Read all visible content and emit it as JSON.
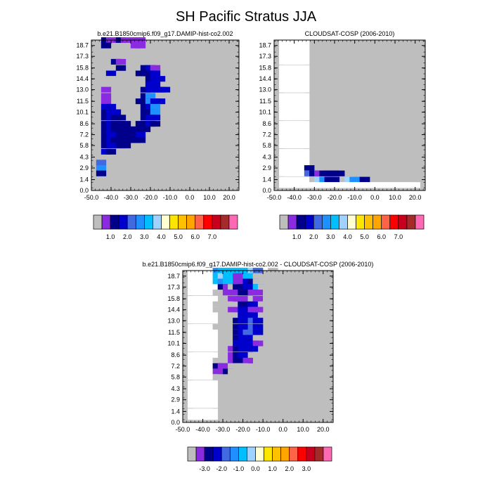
{
  "figure": {
    "title": "SH Pacific Stratus JJA"
  },
  "chart_data": [
    {
      "type": "heatmap",
      "id": "model",
      "title": "b.e21.B1850cmip6.f09_g17.DAMIP-hist-co2.002",
      "x_ticks": [
        "-50.0",
        "-40.0",
        "-30.0",
        "-20.0",
        "-10.0",
        "0.0",
        "10.0",
        "20.0"
      ],
      "y_ticks": [
        "0.0",
        "1.4",
        "2.9",
        "4.3",
        "5.8",
        "7.2",
        "8.6",
        "10.1",
        "11.5",
        "13.0",
        "14.4",
        "15.8",
        "17.3",
        "18.7"
      ],
      "x_columns": [
        "-45",
        "-42.5",
        "-40",
        "-37.5",
        "-35",
        "-32.5",
        "-30",
        "-27.5",
        "-25",
        "-22.5",
        "-20",
        "-17.5",
        "-15",
        "-12.5",
        "-10",
        "-7.5",
        "-5",
        "-2.5",
        "0",
        "2.5",
        "5",
        "7.5",
        "10",
        "12.5",
        "15",
        "17.5",
        "20",
        "22.5",
        "25"
      ],
      "y_rows": [
        "19.4",
        "18.7",
        "18.0",
        "17.3",
        "16.6",
        "15.8",
        "15.1",
        "14.4",
        "13.7",
        "13.0",
        "12.2",
        "11.5",
        "10.8",
        "10.1",
        "9.4",
        "8.6",
        "7.9",
        "7.2",
        "6.5",
        "5.8",
        "5.0",
        "4.3",
        "3.6",
        "2.9",
        "2.2",
        "1.4",
        "0.7"
      ],
      "missing_color": "#bebebe",
      "colorbar": {
        "colors": [
          "#bebebe",
          "#8a2be2",
          "#00008b",
          "#0000cd",
          "#4169e1",
          "#1e90ff",
          "#00bfff",
          "#a0d2ff",
          "#ffffd2",
          "#ffe600",
          "#ffc000",
          "#ffa500",
          "#ff6347",
          "#ff0000",
          "#c8001e",
          "#a52a2a",
          "#ff69b4"
        ],
        "labels": [
          "1.0",
          "2.0",
          "3.0",
          "4.0",
          "5.0",
          "6.0",
          "7.0"
        ]
      },
      "grid": [
        "1cb1cb2bb0000000000000000000",
        "1c21111bb000000000000000000",
        "21111111000000000000000000000",
        "1111111111000000000000000000",
        "111cb111111110000000000000000",
        "1a11c1111cdb00000000000000000",
        "2ad11111cccd0000000000000000",
        "21a1000000cdd00000000000000000",
        "5a10000000dd00000000000000000",
        "5b1000000cdddd0000000000000000",
        "5b1000000cf1110000000000000000",
        "1b100000ccfdd000000000000000000",
        "1dd000000cdf000000000000000000",
        "1cdd00000ccf100000000000000000",
        "1cdcc0000cdd0000000000000000",
        "1cdccc00ccdc000000000000000000",
        "0cdcccc0cc0000000000000000000",
        "0cddccccd00000000000000000000",
        "0cdcccccc00000000000000000000",
        "0cddcc000000000000000000000",
        "0dc000000000000000000000000",
        "00000000000000000000000000",
        "e000000000000000000000000000",
        "f000000000000000000000000000",
        "c000000000000000000000000000",
        "0000000000000000000000000000",
        "0000000000000000000000000000"
      ]
    },
    {
      "type": "heatmap",
      "id": "obs",
      "title": "CLOUDSAT-COSP (2006-2010)",
      "x_ticks": [
        "-50.0",
        "-40.0",
        "-30.0",
        "-20.0",
        "-10.0",
        "0.0",
        "10.0",
        "20.0"
      ],
      "y_ticks": [
        "0.0",
        "1.4",
        "2.9",
        "4.3",
        "5.8",
        "7.2",
        "8.6",
        "10.1",
        "11.5",
        "13.0",
        "14.4",
        "15.8",
        "17.3",
        "18.7"
      ],
      "x_columns": [
        "-45",
        "-42.5",
        "-40",
        "-37.5",
        "-35",
        "-32.5",
        "-30",
        "-27.5",
        "-25",
        "-22.5",
        "-20",
        "-17.5",
        "-15",
        "-12.5",
        "-10",
        "-7.5",
        "-5",
        "-2.5",
        "0",
        "2.5",
        "5",
        "7.5",
        "10",
        "12.5",
        "15",
        "17.5",
        "20",
        "22.5",
        "25"
      ],
      "y_rows": [
        "19.4",
        "18.7",
        "18.0",
        "17.3",
        "16.6",
        "15.8",
        "15.1",
        "14.4",
        "13.7",
        "13.0",
        "12.2",
        "11.5",
        "10.8",
        "10.1",
        "9.4",
        "8.6",
        "7.9",
        "7.2",
        "6.5",
        "5.8",
        "5.0",
        "4.3",
        "3.6",
        "2.9",
        "2.2",
        "1.4",
        "0.7"
      ],
      "missing_color": "#bebebe",
      "colorbar": {
        "colors": [
          "#bebebe",
          "#8a2be2",
          "#00008b",
          "#0000cd",
          "#4169e1",
          "#1e90ff",
          "#00bfff",
          "#a0d2ff",
          "#ffffd2",
          "#ffe600",
          "#ffc000",
          "#ffa500",
          "#ff6347",
          "#ff0000",
          "#c8001e",
          "#a52a2a",
          "#ff69b4"
        ],
        "labels": [
          "1.0",
          "2.0",
          "3.0",
          "4.0",
          "5.0",
          "6.0",
          "7.0"
        ]
      },
      "grid": [
        ".....00000000000000000000000",
        ".....00000000000000000000000",
        ".....00000000000000000000000",
        ".....00000000000000000000000",
        ".....00000000000000000000000",
        ".....00000000000000000000000",
        ".....00000000000000000000000",
        ".....00000000000000000000000",
        ".....00000000000000000000000",
        ".....00000000000000000000000",
        ".....00000000000000000000000",
        ".....111000000000000000000000",
        ".....1111100000000000000000000",
        ".....11111110000000000000000000",
        ".....00000000000000000000000",
        ".....00000000000000000000000",
        ".....00000000000000000000000",
        ".....00000000000000000000000",
        ".....00000000000000000000000",
        ".....00000000000000000000000",
        ".....00000000000000000000000",
        ".....00000000000000000000000",
        ".....00000000000000000000000",
        ".....c1000000000000000000000",
        ".....ecbcccc11100000000000000",
        ".....9ahfcc0ahf0c00000000000",
        "..........................."
      ]
    },
    {
      "type": "heatmap",
      "id": "diff",
      "title": "b.e21.B1850cmip6.f09_g17.DAMIP-hist-co2.002 - CLOUDSAT-COSP (2006-2010)",
      "x_ticks": [
        "-50.0",
        "-40.0",
        "-30.0",
        "-20.0",
        "-10.0",
        "0.0",
        "10.0",
        "20.0"
      ],
      "y_ticks": [
        "0.0",
        "1.4",
        "2.9",
        "4.3",
        "5.8",
        "7.2",
        "8.6",
        "10.1",
        "11.5",
        "13.0",
        "14.4",
        "15.8",
        "17.3",
        "18.7"
      ],
      "x_columns": [
        "-45",
        "-42.5",
        "-40",
        "-37.5",
        "-35",
        "-32.5",
        "-30",
        "-27.5",
        "-25",
        "-22.5",
        "-20",
        "-17.5",
        "-15",
        "-12.5",
        "-10",
        "-7.5",
        "-5",
        "-2.5",
        "0",
        "2.5",
        "5",
        "7.5",
        "10",
        "12.5",
        "15",
        "17.5",
        "20",
        "22.5",
        "25"
      ],
      "y_rows": [
        "19.4",
        "18.7",
        "18.0",
        "17.3",
        "16.6",
        "15.8",
        "15.1",
        "14.4",
        "13.7",
        "13.0",
        "12.2",
        "11.5",
        "10.8",
        "10.1",
        "9.4",
        "8.6",
        "7.9",
        "7.2",
        "6.5",
        "5.8",
        "5.0",
        "4.3",
        "3.6",
        "2.9",
        "2.2",
        "1.4",
        "0.7"
      ],
      "missing_color": "#bebebe",
      "colorbar": {
        "colors": [
          "#bebebe",
          "#8a2be2",
          "#00008b",
          "#0000cd",
          "#4169e1",
          "#1e90ff",
          "#00bfff",
          "#a0d2ff",
          "#ffffd2",
          "#ffe600",
          "#ffc000",
          "#ffa500",
          "#ff6347",
          "#ff0000",
          "#c8001e",
          "#a52a2a",
          "#ff69b4"
        ],
        "labels": [
          "-3.0",
          "-2.0",
          "-1.0",
          "0.0",
          "1.0",
          "2.0",
          "3.0"
        ]
      },
      "grid": [
        ".....fgggggghe99a88888888888",
        ".....ghggbbgga9a88888888888",
        ".....gfggbbdca9a88888888888",
        ".....8cbaccddga988888888888",
        ".....a8bbbccbb9a88888888888",
        ".....899b8b9ab9a88888888888",
        ".....aaa98c9d9a888888888888",
        ".....a9ab9ddbb9888888888888",
        ".....87aa9ddd9a888888888888",
        ".....877acdded9888888888888",
        ".....a97acdded9888888888888",
        ".....787acdeed9888888888888",
        ".....997acddda8888888888888",
        ".....99aaddddb8888888888888",
        ".....898bcddd98888888888888",
        ".....899bcdda77788888888888",
        ".....aa9bccb977777888888888",
        ".....cbbaaa97777777888888888",
        ".....bbca997777777777888888",
        ".....a9a988777777777777888888",
        ".....98877777777777777788888",
        ".....8877777777777777778888",
        ".....8877777777777777778888",
        ".....877777777777777777787888",
        ".....777777777777777778878888",
        ".....1111125217877778887888",
        ".....00000001109000088888888"
      ]
    }
  ]
}
